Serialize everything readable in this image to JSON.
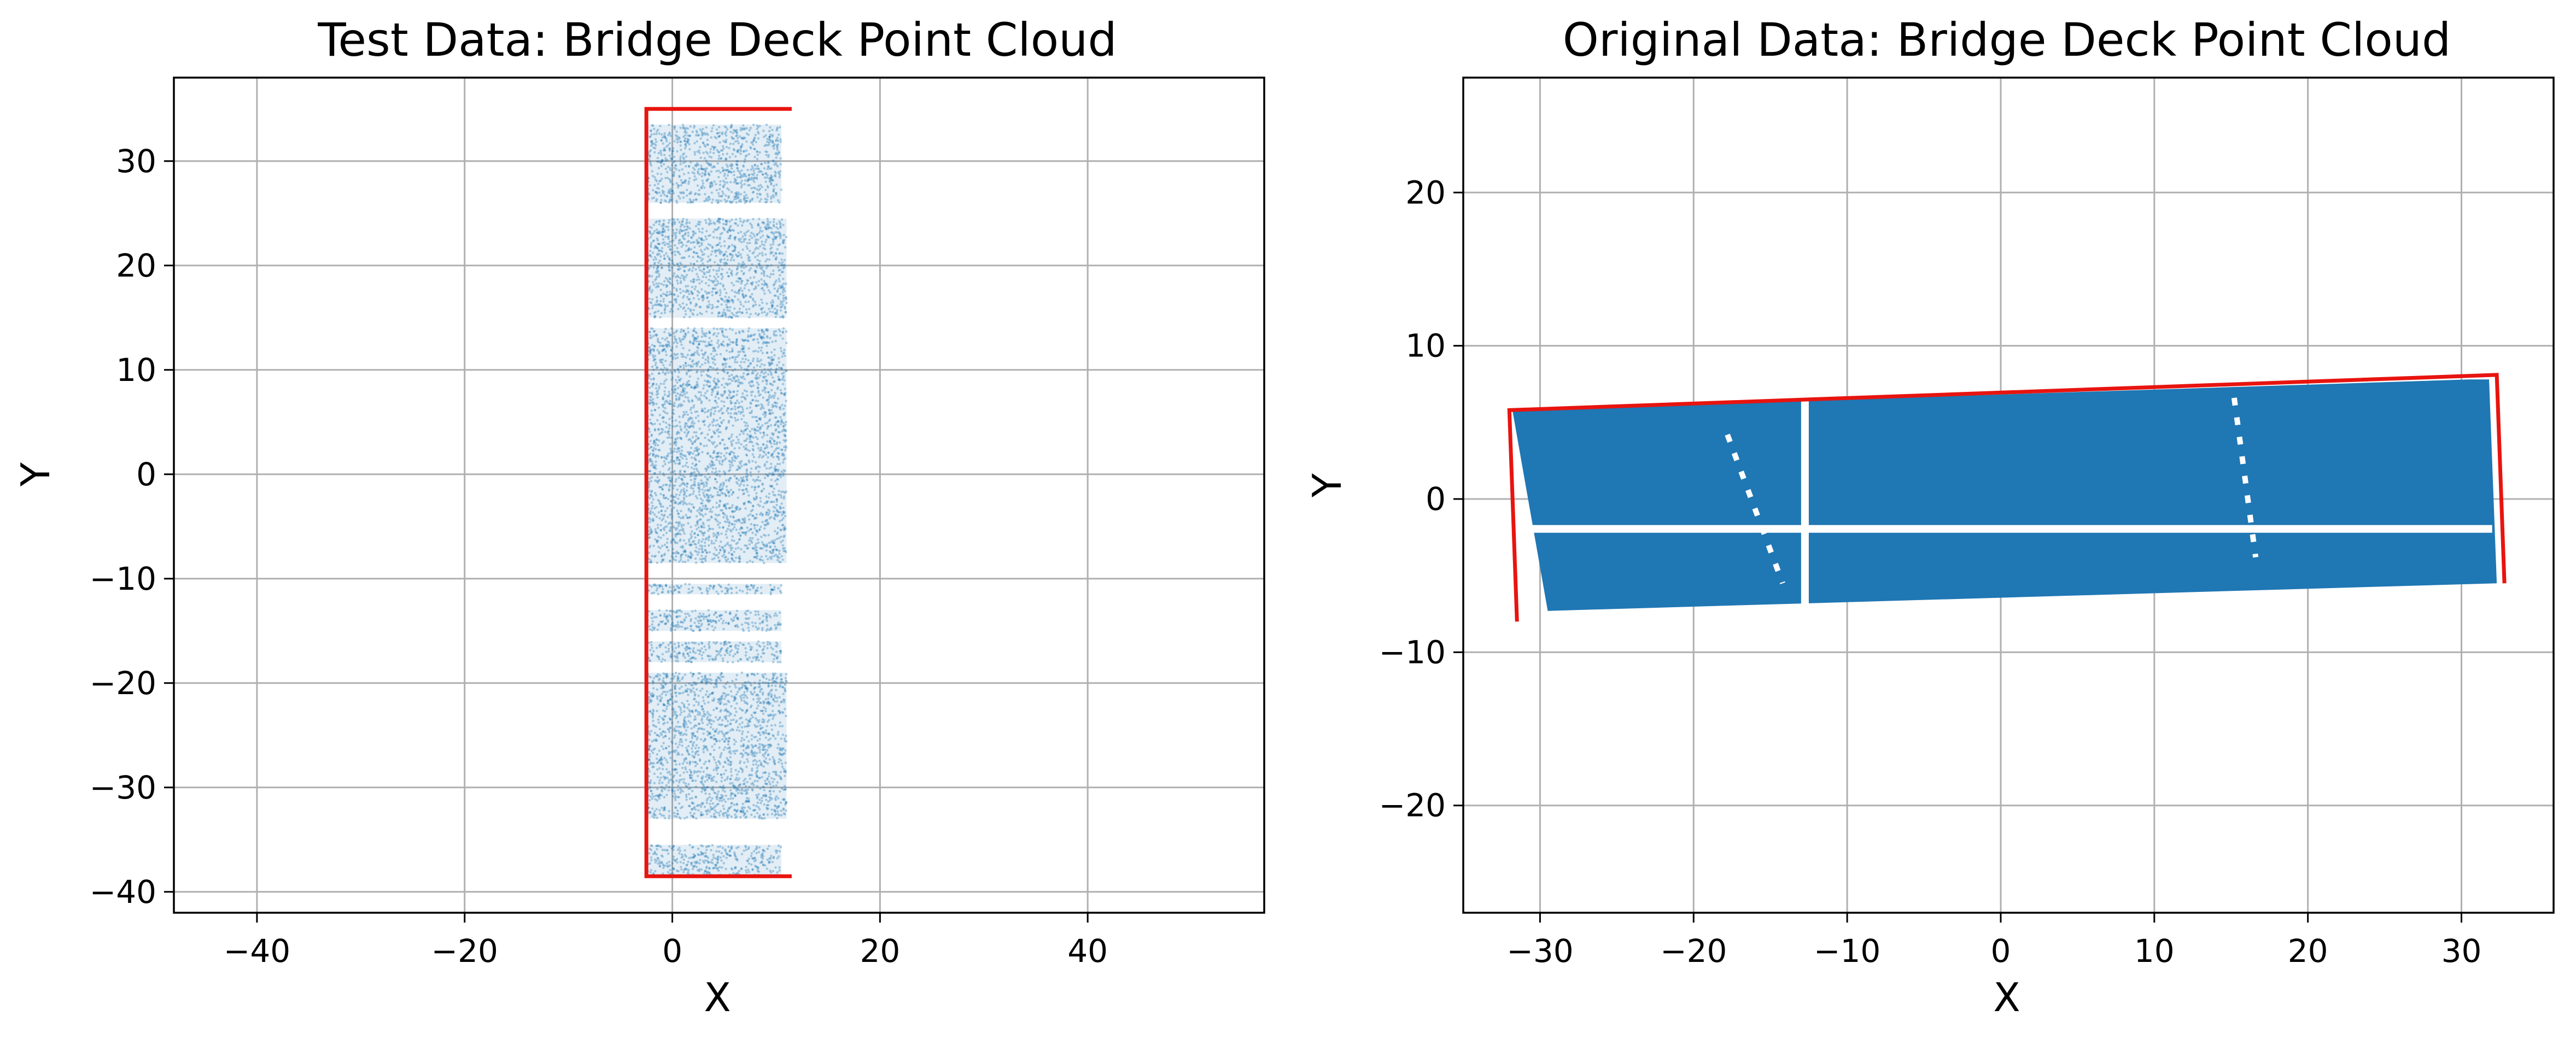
{
  "figure": {
    "background": "#ffffff",
    "grid_color": "#b0b0b0",
    "point_color": "#1f77b4",
    "outline_color": "#e8140f"
  },
  "chart_data": [
    {
      "type": "scatter",
      "title": "Test Data: Bridge Deck Point Cloud",
      "xlabel": "X",
      "ylabel": "Y",
      "xlim": [
        -48,
        57
      ],
      "ylim": [
        -42,
        38
      ],
      "grid": true,
      "x_ticks": [
        -40,
        -20,
        0,
        20,
        40
      ],
      "y_ticks": [
        -40,
        -30,
        -20,
        -10,
        0,
        10,
        20,
        30
      ],
      "x_tick_labels": [
        "−40",
        "−20",
        "0",
        "20",
        "40"
      ],
      "y_tick_labels": [
        "−40",
        "−30",
        "−20",
        "−10",
        "0",
        "10",
        "20",
        "30"
      ],
      "point_style": "faint",
      "point_bands": [
        {
          "x": [
            -2.5,
            10.5
          ],
          "y": [
            26.0,
            33.5
          ]
        },
        {
          "x": [
            -2.5,
            11.0
          ],
          "y": [
            15.0,
            24.5
          ]
        },
        {
          "x": [
            -2.5,
            11.0
          ],
          "y": [
            -8.5,
            14.0
          ]
        },
        {
          "x": [
            -2.5,
            10.5
          ],
          "y": [
            -11.5,
            -10.5
          ]
        },
        {
          "x": [
            -2.5,
            10.5
          ],
          "y": [
            -15.0,
            -13.0
          ]
        },
        {
          "x": [
            -2.5,
            10.5
          ],
          "y": [
            -18.0,
            -16.0
          ]
        },
        {
          "x": [
            -2.5,
            11.0
          ],
          "y": [
            -33.0,
            -19.0
          ]
        },
        {
          "x": [
            -2.5,
            10.5
          ],
          "y": [
            -38.5,
            -35.5
          ]
        }
      ],
      "outline": {
        "x": [
          11.5,
          -2.5,
          -2.5,
          11.5
        ],
        "y": [
          35.0,
          35.0,
          -38.5,
          -38.5
        ]
      }
    },
    {
      "type": "scatter",
      "title": "Original Data: Bridge Deck Point Cloud",
      "xlabel": "X",
      "ylabel": "Y",
      "xlim": [
        -35,
        36
      ],
      "ylim": [
        -27,
        27.5
      ],
      "grid": true,
      "x_ticks": [
        -30,
        -20,
        -10,
        0,
        10,
        20,
        30
      ],
      "y_ticks": [
        -20,
        -10,
        0,
        10,
        20
      ],
      "x_tick_labels": [
        "−30",
        "−20",
        "−10",
        "0",
        "10",
        "20",
        "30"
      ],
      "y_tick_labels": [
        "−20",
        "−10",
        "0",
        "10",
        "20"
      ],
      "point_style": "dense",
      "point_region": {
        "x": [
          -31.8,
          -29.5,
          32.3,
          31.8,
          30.5
        ],
        "y": [
          5.8,
          -7.3,
          -5.5,
          7.8,
          7.8
        ]
      },
      "outline": {
        "x": [
          -31.5,
          -32.0,
          32.3,
          32.8
        ],
        "y": [
          -8.0,
          5.8,
          8.1,
          -5.5
        ]
      }
    }
  ]
}
